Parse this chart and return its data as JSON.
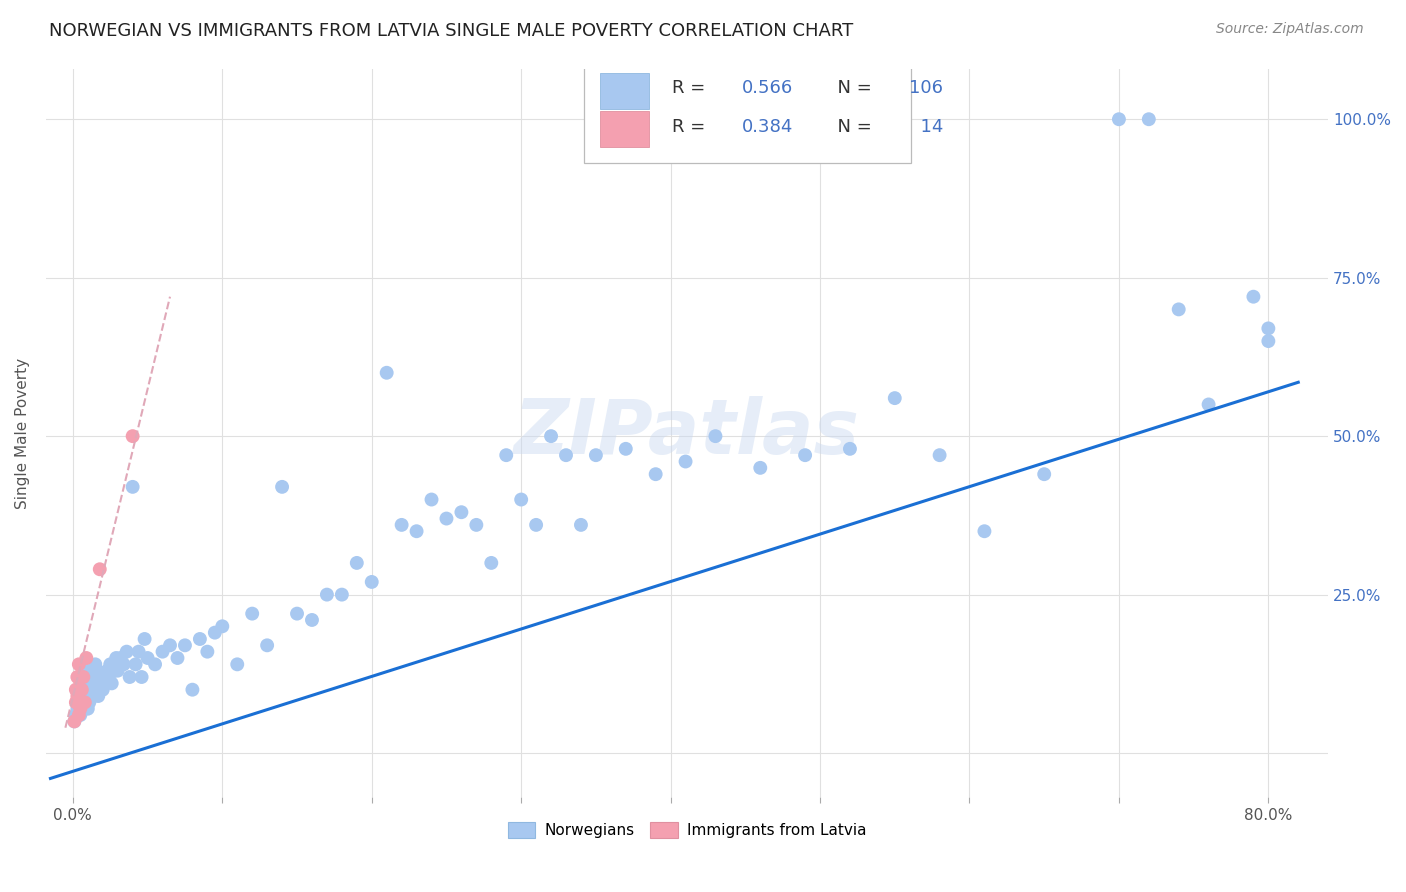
{
  "title": "NORWEGIAN VS IMMIGRANTS FROM LATVIA SINGLE MALE POVERTY CORRELATION CHART",
  "source": "Source: ZipAtlas.com",
  "ylabel": "Single Male Poverty",
  "watermark": "ZIPatlas",
  "norwegian_R": 0.566,
  "norwegian_N": 106,
  "latvian_R": 0.384,
  "latvian_N": 14,
  "norwegian_color": "#a8c8f0",
  "latvian_color": "#f4a0b0",
  "line_color": "#1a6fd4",
  "dashed_line_color": "#e0a8b8",
  "xmin": -0.018,
  "xmax": 0.84,
  "ymin": -0.07,
  "ymax": 1.08,
  "norwegian_x": [
    0.001,
    0.002,
    0.003,
    0.004,
    0.005,
    0.005,
    0.006,
    0.006,
    0.007,
    0.007,
    0.008,
    0.008,
    0.009,
    0.009,
    0.01,
    0.01,
    0.01,
    0.011,
    0.011,
    0.012,
    0.012,
    0.013,
    0.013,
    0.014,
    0.015,
    0.015,
    0.016,
    0.016,
    0.017,
    0.017,
    0.018,
    0.019,
    0.02,
    0.021,
    0.022,
    0.023,
    0.024,
    0.025,
    0.026,
    0.027,
    0.028,
    0.029,
    0.03,
    0.032,
    0.034,
    0.036,
    0.038,
    0.04,
    0.042,
    0.044,
    0.046,
    0.048,
    0.05,
    0.055,
    0.06,
    0.065,
    0.07,
    0.075,
    0.08,
    0.085,
    0.09,
    0.095,
    0.1,
    0.11,
    0.12,
    0.13,
    0.14,
    0.15,
    0.16,
    0.17,
    0.18,
    0.19,
    0.2,
    0.21,
    0.22,
    0.23,
    0.24,
    0.25,
    0.26,
    0.27,
    0.28,
    0.29,
    0.3,
    0.31,
    0.32,
    0.33,
    0.34,
    0.35,
    0.37,
    0.39,
    0.41,
    0.43,
    0.46,
    0.49,
    0.52,
    0.55,
    0.58,
    0.61,
    0.65,
    0.7,
    0.72,
    0.74,
    0.76,
    0.79,
    0.8,
    0.8
  ],
  "norwegian_y": [
    0.05,
    0.06,
    0.07,
    0.08,
    0.06,
    0.09,
    0.07,
    0.1,
    0.08,
    0.11,
    0.09,
    0.12,
    0.08,
    0.13,
    0.07,
    0.09,
    0.12,
    0.08,
    0.11,
    0.09,
    0.12,
    0.1,
    0.13,
    0.09,
    0.1,
    0.14,
    0.1,
    0.13,
    0.09,
    0.12,
    0.11,
    0.12,
    0.1,
    0.12,
    0.11,
    0.13,
    0.12,
    0.14,
    0.11,
    0.14,
    0.13,
    0.15,
    0.13,
    0.15,
    0.14,
    0.16,
    0.12,
    0.42,
    0.14,
    0.16,
    0.12,
    0.18,
    0.15,
    0.14,
    0.16,
    0.17,
    0.15,
    0.17,
    0.1,
    0.18,
    0.16,
    0.19,
    0.2,
    0.14,
    0.22,
    0.17,
    0.42,
    0.22,
    0.21,
    0.25,
    0.25,
    0.3,
    0.27,
    0.6,
    0.36,
    0.35,
    0.4,
    0.37,
    0.38,
    0.36,
    0.3,
    0.47,
    0.4,
    0.36,
    0.5,
    0.47,
    0.36,
    0.47,
    0.48,
    0.44,
    0.46,
    0.5,
    0.45,
    0.47,
    0.48,
    0.56,
    0.47,
    0.35,
    0.44,
    1.0,
    1.0,
    0.7,
    0.55,
    0.72,
    0.67,
    0.65
  ],
  "latvian_x": [
    0.001,
    0.002,
    0.002,
    0.003,
    0.003,
    0.004,
    0.004,
    0.005,
    0.006,
    0.007,
    0.008,
    0.009,
    0.018,
    0.04
  ],
  "latvian_y": [
    0.05,
    0.08,
    0.1,
    0.09,
    0.12,
    0.06,
    0.14,
    0.07,
    0.1,
    0.12,
    0.08,
    0.15,
    0.29,
    0.5
  ],
  "trend_nor_x0": -0.015,
  "trend_nor_x1": 0.82,
  "trend_nor_y0": -0.04,
  "trend_nor_y1": 0.585,
  "trend_lat_x0": -0.005,
  "trend_lat_x1": 0.065,
  "trend_lat_y0": 0.04,
  "trend_lat_y1": 0.72,
  "xtick_vals": [
    0.0,
    0.1,
    0.2,
    0.3,
    0.4,
    0.5,
    0.6,
    0.7,
    0.8
  ],
  "xtick_labels": [
    "0.0%",
    "",
    "",
    "",
    "",
    "",
    "",
    "",
    "80.0%"
  ],
  "ytick_vals": [
    0.0,
    0.25,
    0.5,
    0.75,
    1.0
  ],
  "right_ytick_labels": [
    "",
    "25.0%",
    "50.0%",
    "75.0%",
    "100.0%"
  ],
  "legend_labels": [
    "Norwegians",
    "Immigrants from Latvia"
  ],
  "title_fontsize": 13,
  "axis_label_fontsize": 11,
  "tick_fontsize": 11,
  "source_fontsize": 10
}
